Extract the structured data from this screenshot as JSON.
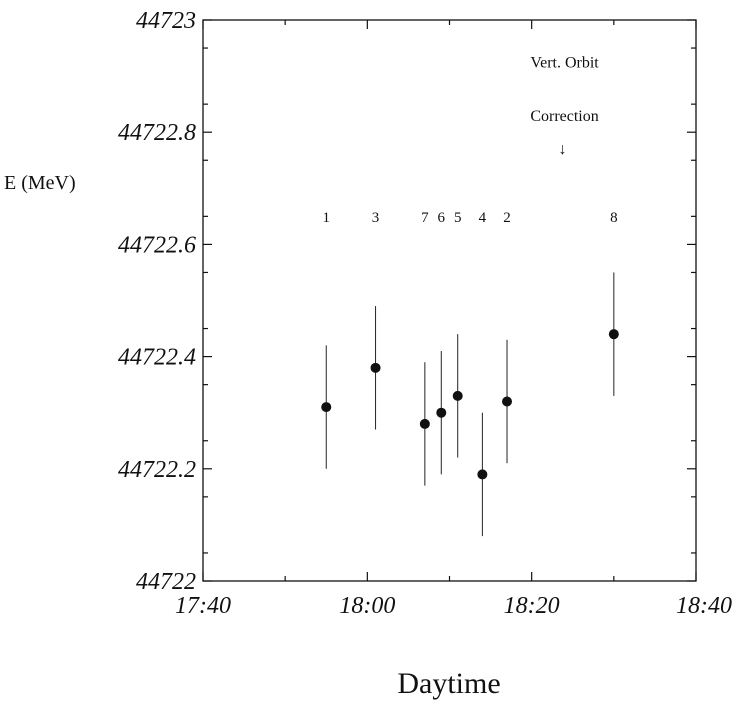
{
  "chart_data": {
    "type": "scatter",
    "title": "",
    "xlabel": "Daytime",
    "ylabel": "E (MeV)",
    "xlim": [
      "17:40",
      "18:40"
    ],
    "ylim": [
      44722,
      44723
    ],
    "xticks": [
      "17:40",
      "18:00",
      "18:20",
      "18:40"
    ],
    "yticks": [
      "44722",
      "44722.2",
      "44722.4",
      "44722.6",
      "44722.8",
      "44723"
    ],
    "grid": false,
    "points": [
      {
        "label": "1",
        "x": "17:55",
        "y": 44722.31,
        "yerr": 0.11
      },
      {
        "label": "3",
        "x": "18:01",
        "y": 44722.38,
        "yerr": 0.11
      },
      {
        "label": "7",
        "x": "18:07",
        "y": 44722.28,
        "yerr": 0.11
      },
      {
        "label": "6",
        "x": "18:09",
        "y": 44722.3,
        "yerr": 0.11
      },
      {
        "label": "5",
        "x": "18:11",
        "y": 44722.33,
        "yerr": 0.11
      },
      {
        "label": "4",
        "x": "18:14",
        "y": 44722.19,
        "yerr": 0.11
      },
      {
        "label": "2",
        "x": "18:17",
        "y": 44722.32,
        "yerr": 0.11
      },
      {
        "label": "8",
        "x": "18:30",
        "y": 44722.44,
        "yerr": 0.11
      }
    ],
    "annotations": [
      {
        "text_line1": "Vert. Orbit",
        "text_line2": "Correction",
        "arrow": "↓",
        "x": "18:24"
      }
    ]
  }
}
